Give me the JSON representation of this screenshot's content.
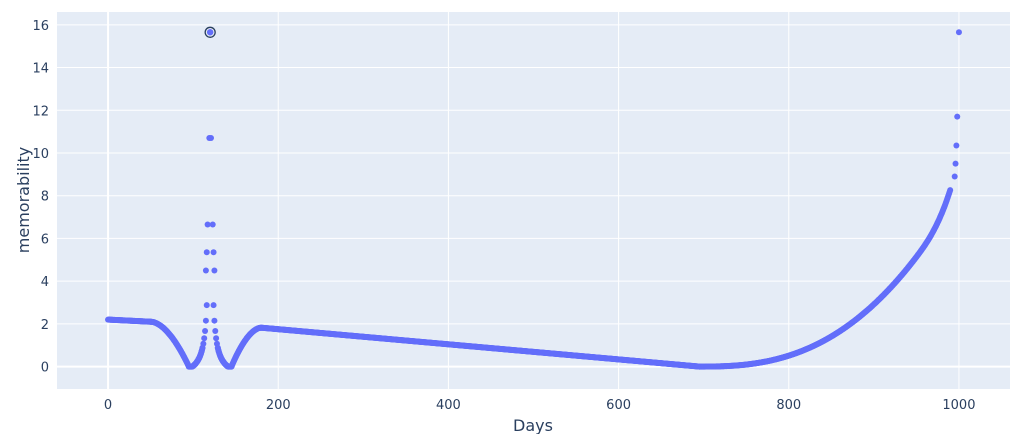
{
  "chart_data": {
    "type": "scatter",
    "xlabel": "Days",
    "ylabel": "memorability",
    "xlim": [
      -60,
      1060
    ],
    "ylim": [
      -1.05,
      16.6
    ],
    "x_ticks": [
      0,
      200,
      400,
      600,
      800,
      1000
    ],
    "y_ticks": [
      0,
      2,
      4,
      6,
      8,
      10,
      12,
      14,
      16
    ],
    "grid": true,
    "plot_bgcolor": "#E5ECF6",
    "marker_color": "#636EFA",
    "highlighted_point": {
      "x": 120,
      "y": 15.65
    },
    "segments": [
      {
        "kind": "line",
        "from": [
          0,
          2.2
        ],
        "to": [
          50,
          2.1
        ]
      },
      {
        "kind": "curve",
        "from": [
          50,
          2.1
        ],
        "to": [
          95,
          0.0
        ]
      },
      {
        "kind": "spike",
        "from": [
          95,
          0.0
        ],
        "peak": [
          120,
          15.65
        ],
        "to": [
          145,
          0.0
        ]
      },
      {
        "kind": "curve",
        "from": [
          145,
          0.0
        ],
        "to": [
          180,
          1.82
        ]
      },
      {
        "kind": "line",
        "from": [
          180,
          1.82
        ],
        "to": [
          695,
          0.0
        ]
      },
      {
        "kind": "rise",
        "from": [
          695,
          0.0
        ],
        "to": [
          1000,
          15.65
        ]
      }
    ],
    "labeled_points": [
      {
        "x": 119,
        "y": 10.7
      },
      {
        "x": 121,
        "y": 10.7
      },
      {
        "x": 117,
        "y": 6.65
      },
      {
        "x": 123,
        "y": 6.65
      },
      {
        "x": 116,
        "y": 5.35
      },
      {
        "x": 124,
        "y": 5.35
      },
      {
        "x": 115,
        "y": 4.5
      },
      {
        "x": 125,
        "y": 4.5
      },
      {
        "x": 998,
        "y": 11.7
      },
      {
        "x": 997,
        "y": 10.35
      },
      {
        "x": 996,
        "y": 9.5
      },
      {
        "x": 995,
        "y": 8.9
      }
    ]
  }
}
